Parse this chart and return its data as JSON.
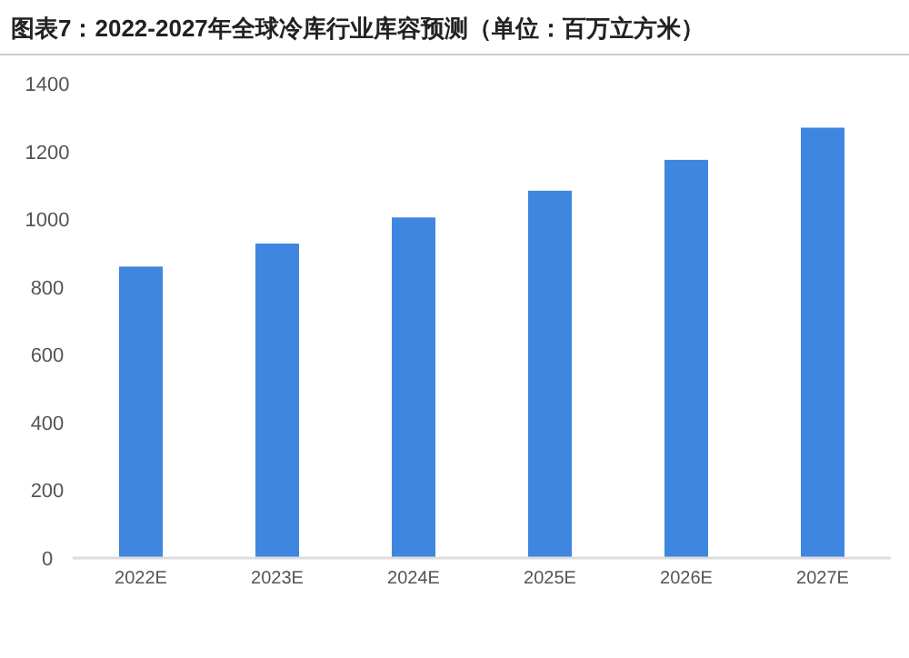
{
  "chart_data": {
    "type": "bar",
    "title": "图表7：2022-2027年全球冷库行业库容预测（单位：百万立方米）",
    "categories": [
      "2022E",
      "2023E",
      "2024E",
      "2025E",
      "2026E",
      "2027E"
    ],
    "values": [
      860,
      928,
      1005,
      1084,
      1175,
      1270
    ],
    "color": "#3f86e0",
    "ylim": [
      0,
      1400
    ],
    "yticks": [
      0,
      200,
      400,
      600,
      800,
      1000,
      1200,
      1400
    ]
  }
}
